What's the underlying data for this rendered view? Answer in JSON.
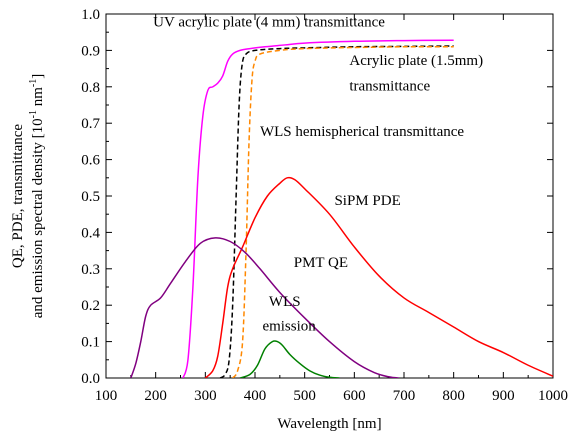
{
  "chart_data": {
    "type": "line",
    "title": "",
    "xlabel": "Wavelength [nm]",
    "ylabel_lines": [
      "QE, PDE, transmittance",
      "and emission spectral density [10",
      "-1",
      " nm",
      "-1",
      "]"
    ],
    "xlim": [
      100,
      1000
    ],
    "ylim": [
      0,
      1.0
    ],
    "xticks": [
      "100",
      "200",
      "300",
      "400",
      "500",
      "600",
      "700",
      "800",
      "900",
      "1000"
    ],
    "yticks": [
      "0.0",
      "0.1",
      "0.2",
      "0.3",
      "0.4",
      "0.5",
      "0.6",
      "0.7",
      "0.8",
      "0.9",
      "1.0"
    ],
    "grid": false,
    "legend": "none",
    "series": [
      {
        "name": "UV acrylic plate (4 mm) transmittance",
        "color": "#ff00ff",
        "dash": false,
        "points": [
          [
            255,
            0
          ],
          [
            265,
            0.05
          ],
          [
            275,
            0.25
          ],
          [
            285,
            0.55
          ],
          [
            295,
            0.72
          ],
          [
            305,
            0.79
          ],
          [
            315,
            0.8
          ],
          [
            325,
            0.81
          ],
          [
            335,
            0.83
          ],
          [
            345,
            0.87
          ],
          [
            355,
            0.89
          ],
          [
            370,
            0.9
          ],
          [
            390,
            0.905
          ],
          [
            420,
            0.91
          ],
          [
            460,
            0.915
          ],
          [
            500,
            0.92
          ],
          [
            600,
            0.925
          ],
          [
            700,
            0.927
          ],
          [
            800,
            0.928
          ]
        ]
      },
      {
        "name": "Acrylic plate (1.5mm) transmittance",
        "color": "#000000",
        "dash": true,
        "points": [
          [
            330,
            0
          ],
          [
            340,
            0.01
          ],
          [
            348,
            0.05
          ],
          [
            355,
            0.2
          ],
          [
            362,
            0.5
          ],
          [
            368,
            0.75
          ],
          [
            374,
            0.86
          ],
          [
            382,
            0.89
          ],
          [
            400,
            0.9
          ],
          [
            450,
            0.905
          ],
          [
            500,
            0.907
          ],
          [
            600,
            0.91
          ],
          [
            700,
            0.911
          ],
          [
            800,
            0.912
          ]
        ]
      },
      {
        "name": "WLS hemispherical transmittance",
        "color": "#ff8800",
        "dash": true,
        "points": [
          [
            355,
            0
          ],
          [
            365,
            0.02
          ],
          [
            375,
            0.1
          ],
          [
            382,
            0.35
          ],
          [
            388,
            0.65
          ],
          [
            394,
            0.82
          ],
          [
            400,
            0.87
          ],
          [
            410,
            0.89
          ],
          [
            450,
            0.9
          ],
          [
            500,
            0.905
          ],
          [
            600,
            0.908
          ],
          [
            700,
            0.91
          ],
          [
            800,
            0.91
          ]
        ]
      },
      {
        "name": "SiPM PDE",
        "color": "#ff0000",
        "dash": false,
        "points": [
          [
            300,
            0
          ],
          [
            315,
            0.02
          ],
          [
            325,
            0.06
          ],
          [
            335,
            0.15
          ],
          [
            345,
            0.25
          ],
          [
            355,
            0.3
          ],
          [
            375,
            0.36
          ],
          [
            400,
            0.44
          ],
          [
            425,
            0.5
          ],
          [
            450,
            0.535
          ],
          [
            465,
            0.55
          ],
          [
            480,
            0.545
          ],
          [
            500,
            0.52
          ],
          [
            550,
            0.45
          ],
          [
            600,
            0.36
          ],
          [
            650,
            0.28
          ],
          [
            700,
            0.22
          ],
          [
            750,
            0.18
          ],
          [
            800,
            0.14
          ],
          [
            850,
            0.1
          ],
          [
            900,
            0.07
          ],
          [
            950,
            0.035
          ],
          [
            1000,
            0.005
          ]
        ]
      },
      {
        "name": "PMT QE",
        "color": "#800080",
        "dash": false,
        "points": [
          [
            150,
            0
          ],
          [
            160,
            0.04
          ],
          [
            170,
            0.1
          ],
          [
            180,
            0.17
          ],
          [
            190,
            0.2
          ],
          [
            210,
            0.22
          ],
          [
            230,
            0.26
          ],
          [
            260,
            0.32
          ],
          [
            290,
            0.37
          ],
          [
            320,
            0.385
          ],
          [
            350,
            0.375
          ],
          [
            380,
            0.345
          ],
          [
            410,
            0.3
          ],
          [
            450,
            0.235
          ],
          [
            500,
            0.165
          ],
          [
            550,
            0.1
          ],
          [
            600,
            0.045
          ],
          [
            640,
            0.015
          ],
          [
            670,
            0.003
          ],
          [
            690,
            0
          ]
        ]
      },
      {
        "name": "WLS emission",
        "color": "#008000",
        "dash": false,
        "points": [
          [
            370,
            0
          ],
          [
            390,
            0.01
          ],
          [
            405,
            0.035
          ],
          [
            420,
            0.08
          ],
          [
            435,
            0.1
          ],
          [
            445,
            0.1
          ],
          [
            455,
            0.09
          ],
          [
            470,
            0.065
          ],
          [
            490,
            0.04
          ],
          [
            510,
            0.02
          ],
          [
            530,
            0.008
          ],
          [
            550,
            0.002
          ],
          [
            570,
            0
          ]
        ]
      }
    ],
    "annotations": [
      {
        "text": "UV acrylic plate (4 mm) transmittance",
        "x": 195,
        "y": 0.965
      },
      {
        "text": "Acrylic plate (1.5mm)",
        "x": 590,
        "y": 0.86
      },
      {
        "text": "transmittance",
        "x": 590,
        "y": 0.79
      },
      {
        "text": "WLS hemispherical transmittance",
        "x": 410,
        "y": 0.665
      },
      {
        "text": "SiPM PDE",
        "x": 560,
        "y": 0.475
      },
      {
        "text": "PMT QE",
        "x": 478,
        "y": 0.305
      },
      {
        "text": "WLS",
        "x": 428,
        "y": 0.198
      },
      {
        "text": "emission",
        "x": 415,
        "y": 0.13
      }
    ]
  }
}
